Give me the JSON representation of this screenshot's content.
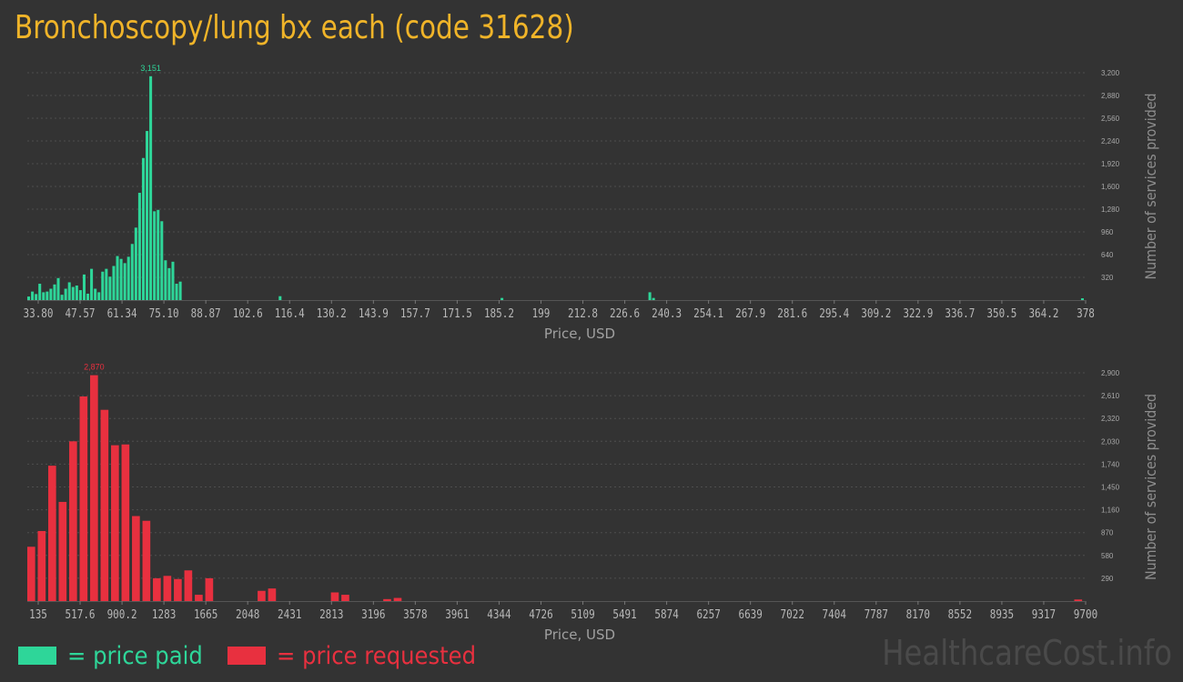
{
  "title": "Bronchoscopy/lung bx each (code 31628)",
  "watermark": "HealthcareCost.info",
  "colors": {
    "paid": "#2ed699",
    "requested": "#e8303f",
    "title": "#f0b429"
  },
  "legend": {
    "paid": "= price paid",
    "requested": "= price requested"
  },
  "chart_data": [
    {
      "type": "bar",
      "series_name": "price paid",
      "xlabel": "Price, USD",
      "ylabel": "Number of services provided",
      "x_tick_labels": [
        "33.80",
        "47.57",
        "61.34",
        "75.10",
        "88.87",
        "102.6",
        "116.4",
        "130.2",
        "143.9",
        "157.7",
        "171.5",
        "185.2",
        "199",
        "212.8",
        "226.6",
        "240.3",
        "254.1",
        "267.9",
        "281.6",
        "295.4",
        "309.2",
        "322.9",
        "336.7",
        "350.5",
        "364.2",
        "378"
      ],
      "y_ticks": [
        "320",
        "640",
        "960",
        "1,280",
        "1,600",
        "1,920",
        "2,240",
        "2,560",
        "2,880",
        "3,200"
      ],
      "ylim": [
        0,
        3200
      ],
      "peak_label": "3,151",
      "values": [
        50,
        120,
        85,
        230,
        110,
        120,
        160,
        220,
        310,
        75,
        160,
        250,
        185,
        205,
        140,
        360,
        90,
        440,
        160,
        110,
        400,
        440,
        330,
        480,
        620,
        580,
        520,
        610,
        790,
        1020,
        1510,
        2000,
        2380,
        3151,
        1250,
        1270,
        1110,
        560,
        450,
        540,
        230,
        260,
        0,
        0,
        0,
        0,
        0,
        0,
        0,
        0,
        0,
        0,
        0,
        0,
        0,
        0,
        0,
        0,
        0,
        0,
        0,
        0,
        0,
        0,
        0,
        0,
        0,
        0,
        55,
        0,
        0,
        0,
        0,
        0,
        0,
        0,
        0,
        0,
        0,
        0,
        0,
        0,
        0,
        0,
        0,
        0,
        0,
        0,
        0,
        0,
        0,
        0,
        0,
        0,
        0,
        0,
        0,
        0,
        0,
        0,
        0,
        0,
        0,
        0,
        0,
        0,
        0,
        0,
        0,
        0,
        0,
        0,
        0,
        0,
        0,
        0,
        0,
        0,
        0,
        0,
        0,
        0,
        0,
        0,
        0,
        0,
        0,
        0,
        30,
        0,
        0,
        0,
        0,
        0,
        0,
        0,
        0,
        0,
        0,
        0,
        0,
        0,
        0,
        0,
        0,
        0,
        0,
        0,
        0,
        0,
        0,
        0,
        0,
        0,
        0,
        0,
        0,
        0,
        0,
        0,
        0,
        0,
        0,
        0,
        0,
        0,
        0,
        0,
        110,
        30,
        0,
        0,
        0,
        0,
        0,
        0,
        0,
        0,
        0,
        0,
        0,
        0,
        0,
        0,
        0,
        0,
        0,
        0,
        0,
        0,
        0,
        0,
        0,
        0,
        0,
        0,
        0,
        0,
        0,
        0,
        0,
        0,
        0,
        0,
        0,
        0,
        0,
        0,
        0,
        0,
        0,
        0,
        0,
        0,
        0,
        0,
        0,
        0,
        0,
        0,
        0,
        0,
        0,
        0,
        0,
        0,
        0,
        0,
        0,
        0,
        0,
        0,
        0,
        0,
        0,
        0,
        0,
        0,
        0,
        0,
        0,
        0,
        0,
        0,
        0,
        0,
        0,
        0,
        0,
        0,
        0,
        0,
        0,
        0,
        0,
        0,
        0,
        0,
        0,
        0,
        0,
        0,
        0,
        0,
        0,
        0,
        0,
        0,
        0,
        0,
        0,
        0,
        0,
        0,
        0,
        0,
        0,
        0,
        0,
        0,
        0,
        0,
        0,
        0,
        0,
        25
      ]
    },
    {
      "type": "bar",
      "series_name": "price requested",
      "xlabel": "Price, USD",
      "ylabel": "Number of services provided",
      "x_tick_labels": [
        "135",
        "517.6",
        "900.2",
        "1283",
        "1665",
        "2048",
        "2431",
        "2813",
        "3196",
        "3578",
        "3961",
        "4344",
        "4726",
        "5109",
        "5491",
        "5874",
        "6257",
        "6639",
        "7022",
        "7404",
        "7787",
        "8170",
        "8552",
        "8935",
        "9317",
        "9700"
      ],
      "y_ticks": [
        "290",
        "580",
        "870",
        "1,160",
        "1,450",
        "1,740",
        "2,030",
        "2,320",
        "2,610",
        "2,900"
      ],
      "ylim": [
        0,
        2900
      ],
      "peak_label": "2,870",
      "values": [
        690,
        890,
        1720,
        1260,
        2030,
        2600,
        2870,
        2430,
        1980,
        1990,
        1080,
        1020,
        290,
        320,
        280,
        390,
        80,
        290,
        0,
        0,
        0,
        0,
        130,
        160,
        0,
        0,
        0,
        0,
        0,
        110,
        80,
        0,
        0,
        0,
        25,
        40,
        0,
        0,
        0,
        0,
        0,
        0,
        0,
        0,
        0,
        0,
        0,
        0,
        0,
        0,
        0,
        0,
        0,
        0,
        0,
        0,
        0,
        0,
        0,
        0,
        0,
        0,
        0,
        0,
        0,
        0,
        0,
        0,
        0,
        0,
        0,
        0,
        0,
        0,
        0,
        0,
        0,
        0,
        0,
        0,
        0,
        0,
        0,
        0,
        0,
        0,
        0,
        0,
        0,
        0,
        0,
        0,
        0,
        0,
        0,
        0,
        0,
        0,
        0,
        0,
        20
      ]
    }
  ]
}
